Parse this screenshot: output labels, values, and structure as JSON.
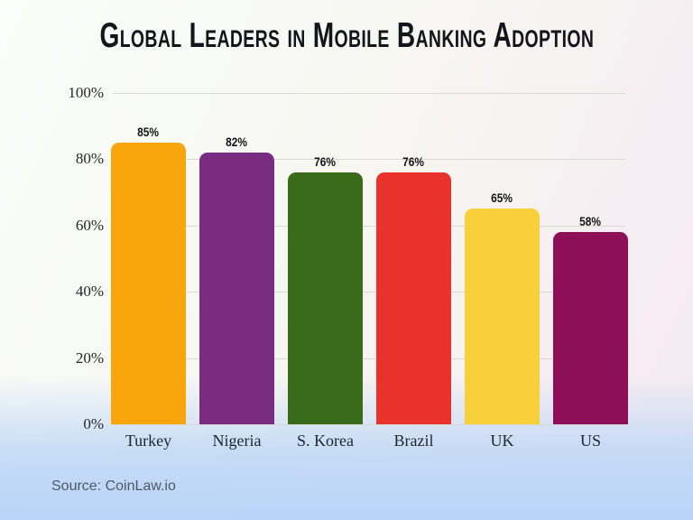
{
  "title": "Global Leaders in Mobile Banking Adoption",
  "source_note": "Source: CoinLaw.io",
  "chart_data": {
    "type": "bar",
    "title": "Global Leaders in Mobile Banking Adoption",
    "categories": [
      "Turkey",
      "Nigeria",
      "S. Korea",
      "Brazil",
      "UK",
      "US"
    ],
    "values": [
      85,
      82,
      76,
      76,
      65,
      58
    ],
    "data_labels": [
      "85%",
      "82%",
      "76%",
      "76%",
      "65%",
      "58%"
    ],
    "bar_colors": [
      "#F9A60D",
      "#7A2C83",
      "#3A6B1A",
      "#E8322B",
      "#F8D03A",
      "#8D0F57"
    ],
    "xlabel": "",
    "ylabel": "",
    "ylim": [
      0,
      100
    ],
    "yticks": [
      "0%",
      "20%",
      "40%",
      "60%",
      "80%",
      "100%"
    ],
    "grid": true,
    "legend": false,
    "gridline_color": "#d8dbd3",
    "background_colors": {
      "top": "#fafdf9",
      "mid_pink": "#f6edf2",
      "bottom_blue": "#b9d4f8"
    }
  }
}
